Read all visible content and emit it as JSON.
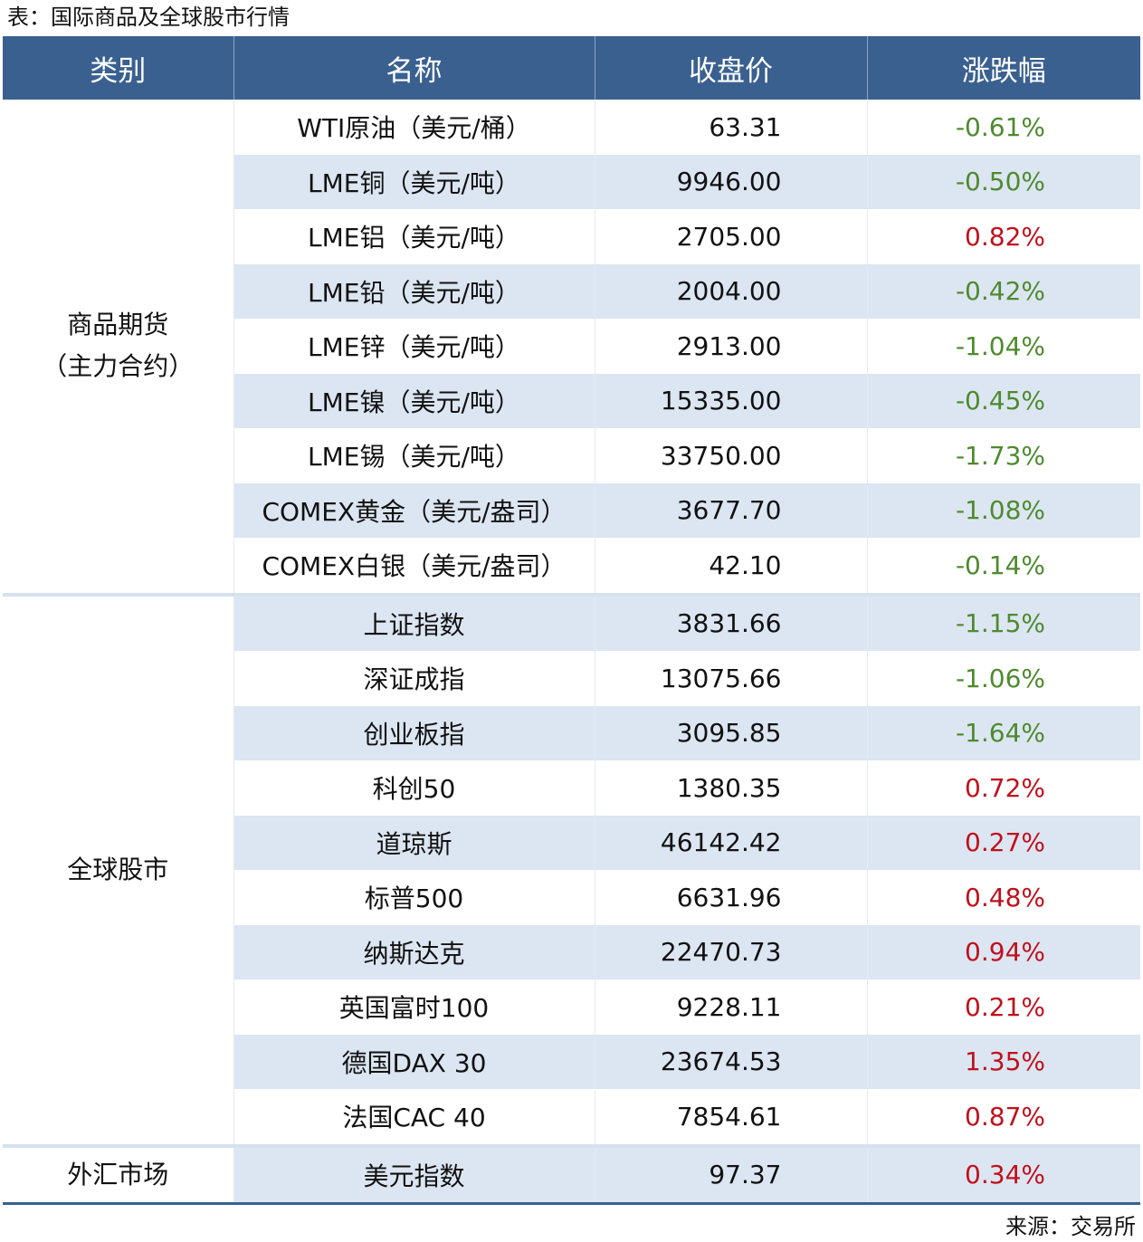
{
  "title": "表：国际商品及全球股市行情",
  "table": {
    "header": [
      "类别",
      "名称",
      "收盘价",
      "涨跌幅"
    ],
    "groups": [
      {
        "category": [
          "商品期货",
          "（主力合约）"
        ],
        "rows": [
          [
            "WTI原油（美元/桶）",
            "63.31",
            "-0.61%"
          ],
          [
            "LME铜（美元/吨）",
            "9946.00",
            "-0.50%"
          ],
          [
            "LME铝（美元/吨）",
            "2705.00",
            "0.82%"
          ],
          [
            "LME铅（美元/吨）",
            "2004.00",
            "-0.42%"
          ],
          [
            "LME锌（美元/吨）",
            "2913.00",
            "-1.04%"
          ],
          [
            "LME镍（美元/吨）",
            "15335.00",
            "-0.45%"
          ],
          [
            "LME锡（美元/吨）",
            "33750.00",
            "-1.73%"
          ],
          [
            "COMEX黄金（美元/盎司）",
            "3677.70",
            "-1.08%"
          ],
          [
            "COMEX白银（美元/盎司）",
            "42.10",
            "-0.14%"
          ]
        ]
      },
      {
        "category": [
          "全球股市"
        ],
        "rows": [
          [
            "上证指数",
            "3831.66",
            "-1.15%"
          ],
          [
            "深证成指",
            "13075.66",
            "-1.06%"
          ],
          [
            "创业板指",
            "3095.85",
            "-1.64%"
          ],
          [
            "科创50",
            "1380.35",
            "0.72%"
          ],
          [
            "道琼斯",
            "46142.42",
            "0.27%"
          ],
          [
            "标普500",
            "6631.96",
            "0.48%"
          ],
          [
            "纳斯达克",
            "22470.73",
            "0.94%"
          ],
          [
            "英国富时100",
            "9228.11",
            "0.21%"
          ],
          [
            "德国DAX 30",
            "23674.53",
            "1.35%"
          ],
          [
            "法国CAC 40",
            "7854.61",
            "0.87%"
          ]
        ]
      },
      {
        "category": [
          "外汇市场"
        ],
        "rows": [
          [
            "美元指数",
            "97.37",
            "0.34%"
          ]
        ]
      }
    ]
  },
  "source": "来源：交易所"
}
